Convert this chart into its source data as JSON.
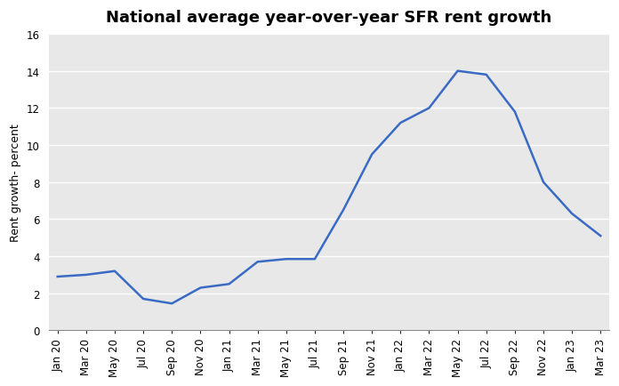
{
  "title": "National average year-over-year SFR rent growth",
  "ylabel": "Rent growth- percent",
  "line_color": "#3A6BC4",
  "background_color": "#E8E8E8",
  "figure_facecolor": "#FFFFFF",
  "ylim": [
    0,
    16
  ],
  "yticks": [
    0,
    2,
    4,
    6,
    8,
    10,
    12,
    14,
    16
  ],
  "x_labels": [
    "Jan 20",
    "Mar 20",
    "May 20",
    "Jul 20",
    "Sep 20",
    "Nov 20",
    "Jan 21",
    "Mar 21",
    "May 21",
    "Jul 21",
    "Sep 21",
    "Nov 21",
    "Jan 22",
    "Mar 22",
    "May 22",
    "Jul 22",
    "Sep 22",
    "Nov 22",
    "Jan 23",
    "Mar 23"
  ],
  "data_y": [
    2.9,
    3.0,
    3.2,
    1.7,
    1.45,
    2.3,
    2.5,
    3.7,
    3.85,
    3.85,
    6.5,
    9.5,
    11.2,
    12.0,
    14.0,
    13.8,
    11.8,
    8.0,
    6.3,
    5.1
  ],
  "line_width": 1.8,
  "title_fontsize": 13,
  "axis_fontsize": 9,
  "tick_fontsize": 8.5,
  "grid_color": "#FFFFFF",
  "grid_linewidth": 1.0
}
